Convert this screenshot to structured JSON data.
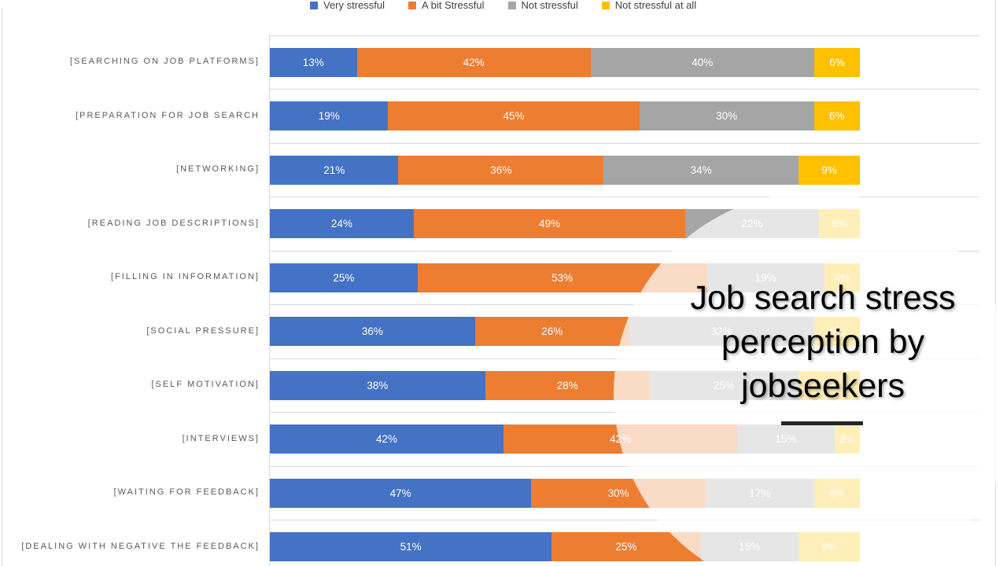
{
  "title": {
    "text": "Job search stress perception by jobseekers"
  },
  "legend": {
    "position": "top",
    "items": [
      {
        "label": "Very stressful",
        "color": "#4472C4"
      },
      {
        "label": "A bit Stressful",
        "color": "#ED7D31"
      },
      {
        "label": "Not stressful",
        "color": "#A5A5A5"
      },
      {
        "label": "Not stressful at all",
        "color": "#FFC000"
      }
    ]
  },
  "chart_data": {
    "type": "bar",
    "orientation": "horizontal",
    "stacked": true,
    "value_suffix": "%",
    "xlim": [
      0,
      100
    ],
    "grid": "band-separators",
    "title": "Job search stress perception by jobseekers",
    "categories": [
      "[SEARCHING ON JOB PLATFORMS]",
      "[PREPARATION FOR JOB SEARCH",
      "[NETWORKING]",
      "[READING JOB DESCRIPTIONS]",
      "[FILLING IN INFORMATION]",
      "[SOCIAL PRESSURE]",
      "[SELF MOTIVATION]",
      "[INTERVIEWS]",
      "[WAITING FOR FEEDBACK]",
      "[DEALING WITH NEGATIVE THE FEEDBACK]"
    ],
    "series": [
      {
        "name": "Very stressful",
        "color": "#4472C4",
        "values": [
          13,
          19,
          21,
          24,
          25,
          36,
          38,
          42,
          47,
          51
        ]
      },
      {
        "name": "A bit Stressful",
        "color": "#ED7D31",
        "values": [
          42,
          45,
          36,
          49,
          53,
          26,
          28,
          42,
          30,
          25
        ]
      },
      {
        "name": "Not stressful",
        "color": "#A5A5A5",
        "values": [
          40,
          30,
          34,
          22,
          19,
          32,
          25,
          15,
          17,
          15
        ]
      },
      {
        "name": "Not stressful at all",
        "color": "#FFC000",
        "values": [
          6,
          6,
          9,
          5,
          4,
          6,
          9,
          2,
          6,
          9
        ]
      }
    ]
  },
  "overlay": {
    "shape": "circle",
    "color": "#FFFFFF",
    "opacity": 0.72
  }
}
